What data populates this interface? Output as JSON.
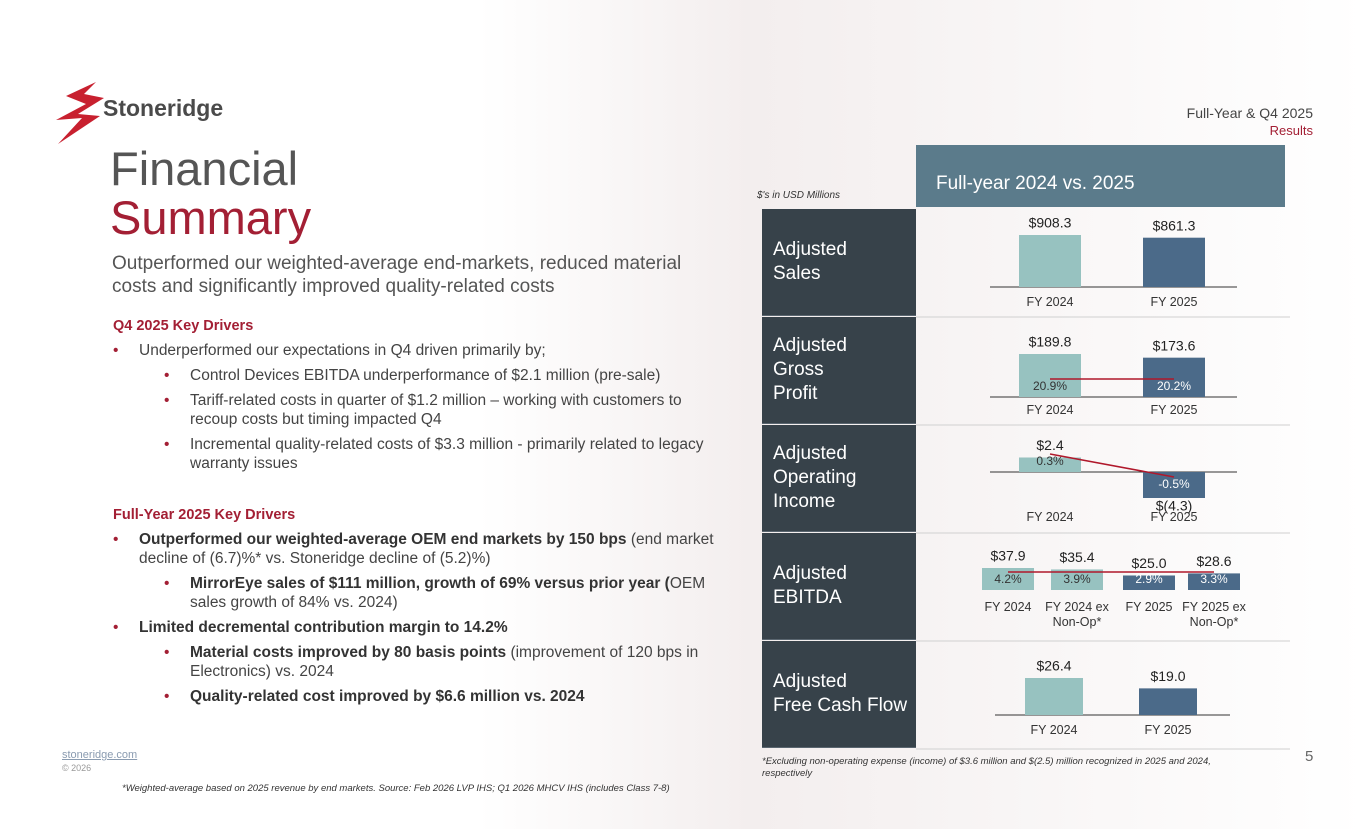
{
  "header": {
    "logo": "Stoneridge",
    "deck_title": "Full-Year & Q4 2025",
    "deck_subtitle": "Results"
  },
  "title": {
    "line1": "Financial",
    "line2": "Summary"
  },
  "subtitle": "Outperformed our weighted-average end-markets, reduced material costs and significantly improved quality-related costs",
  "sections": [
    {
      "heading": "Q4 2025 Key Drivers",
      "bullets": [
        {
          "level": 1,
          "text": "Underperformed our expectations in Q4 driven primarily by;"
        },
        {
          "level": 2,
          "text": "Control Devices EBITDA underperformance of $2.1 million (pre-sale)"
        },
        {
          "level": 2,
          "text": "Tariff-related costs in quarter of $1.2 million – working with customers to recoup costs but timing impacted Q4"
        },
        {
          "level": 2,
          "text": "Incremental quality-related costs of $3.3 million - primarily related to legacy warranty issues"
        }
      ]
    },
    {
      "heading": "Full-Year 2025 Key Drivers",
      "bullets": [
        {
          "level": 1,
          "bold": "Outperformed our weighted-average OEM end markets by 150 bps",
          "text": " (end market decline of (6.7)%* vs. Stoneridge decline of (5.2)%)"
        },
        {
          "level": 2,
          "bold": "MirrorEye sales of $111 million, growth of 69% versus prior year (",
          "text": "OEM sales growth of 84% vs. 2024)"
        },
        {
          "level": 1,
          "bold": "Limited decremental contribution margin to 14.2%"
        },
        {
          "level": 2,
          "bold": "Material costs improved by 80 basis points",
          "text": " (improvement of 120 bps in Electronics) vs. 2024"
        },
        {
          "level": 2,
          "bold": "Quality-related cost improved by $6.6 million vs. 2024"
        }
      ]
    }
  ],
  "comparison": {
    "title": "Full-year 2024 vs. 2025",
    "units_note": "$'s in USD Millions",
    "rows": [
      {
        "label": [
          "Adjusted",
          "Sales"
        ],
        "chart": {
          "type": "bar",
          "categories": [
            "FY 2024",
            "FY 2025"
          ],
          "values": [
            908.3,
            861.3
          ],
          "value_labels": [
            "$908.3",
            "$861.3"
          ],
          "colors": [
            "#97c2c0",
            "#4b6a89"
          ]
        }
      },
      {
        "label": [
          "Adjusted",
          "Gross",
          "Profit"
        ],
        "chart": {
          "type": "bar",
          "categories": [
            "FY 2024",
            "FY 2025"
          ],
          "values": [
            189.8,
            173.6
          ],
          "value_labels": [
            "$189.8",
            "$173.6"
          ],
          "margins": [
            20.9,
            20.2
          ],
          "margin_labels": [
            "20.9%",
            "20.2%"
          ],
          "colors": [
            "#97c2c0",
            "#4b6a89"
          ]
        }
      },
      {
        "label": [
          "Adjusted",
          "Operating",
          "Income"
        ],
        "chart": {
          "type": "bar",
          "categories": [
            "FY 2024",
            "FY 2025"
          ],
          "values": [
            2.4,
            -4.3
          ],
          "value_labels": [
            "$2.4",
            "$(4.3)"
          ],
          "margins": [
            0.3,
            -0.5
          ],
          "margin_labels": [
            "0.3%",
            "-0.5%"
          ],
          "colors": [
            "#97c2c0",
            "#4b6a89"
          ]
        }
      },
      {
        "label": [
          "Adjusted",
          "EBITDA"
        ],
        "chart": {
          "type": "bar",
          "categories": [
            "FY 2024",
            "FY 2024 ex Non-Op*",
            "FY 2025",
            "FY 2025 ex Non-Op*"
          ],
          "values": [
            37.9,
            35.4,
            25.0,
            28.6
          ],
          "value_labels": [
            "$37.9",
            "$35.4",
            "$25.0",
            "$28.6"
          ],
          "margins": [
            4.2,
            3.9,
            2.9,
            3.3
          ],
          "margin_labels": [
            "4.2%",
            "3.9%",
            "2.9%",
            "3.3%"
          ],
          "colors": [
            "#97c2c0",
            "#97c2c0",
            "#4b6a89",
            "#4b6a89"
          ]
        }
      },
      {
        "label": [
          "Adjusted",
          "Free Cash Flow"
        ],
        "chart": {
          "type": "bar",
          "categories": [
            "FY 2024",
            "FY 2025"
          ],
          "values": [
            26.4,
            19.0
          ],
          "value_labels": [
            "$26.4",
            "$19.0"
          ],
          "colors": [
            "#97c2c0",
            "#4b6a89"
          ]
        }
      }
    ],
    "footnote": "*Excluding non-operating expense (income) of $3.6 million and $(2.5) million recognized in 2025 and 2024, respectively"
  },
  "footer": {
    "website": "stoneridge.com",
    "copyright": "© 2026",
    "footnote": "*Weighted-average based on 2025 revenue by end markets. Source: Feb 2026 LVP IHS; Q1 2026 MHCV IHS (includes Class 7-8)",
    "page_number": 5
  }
}
